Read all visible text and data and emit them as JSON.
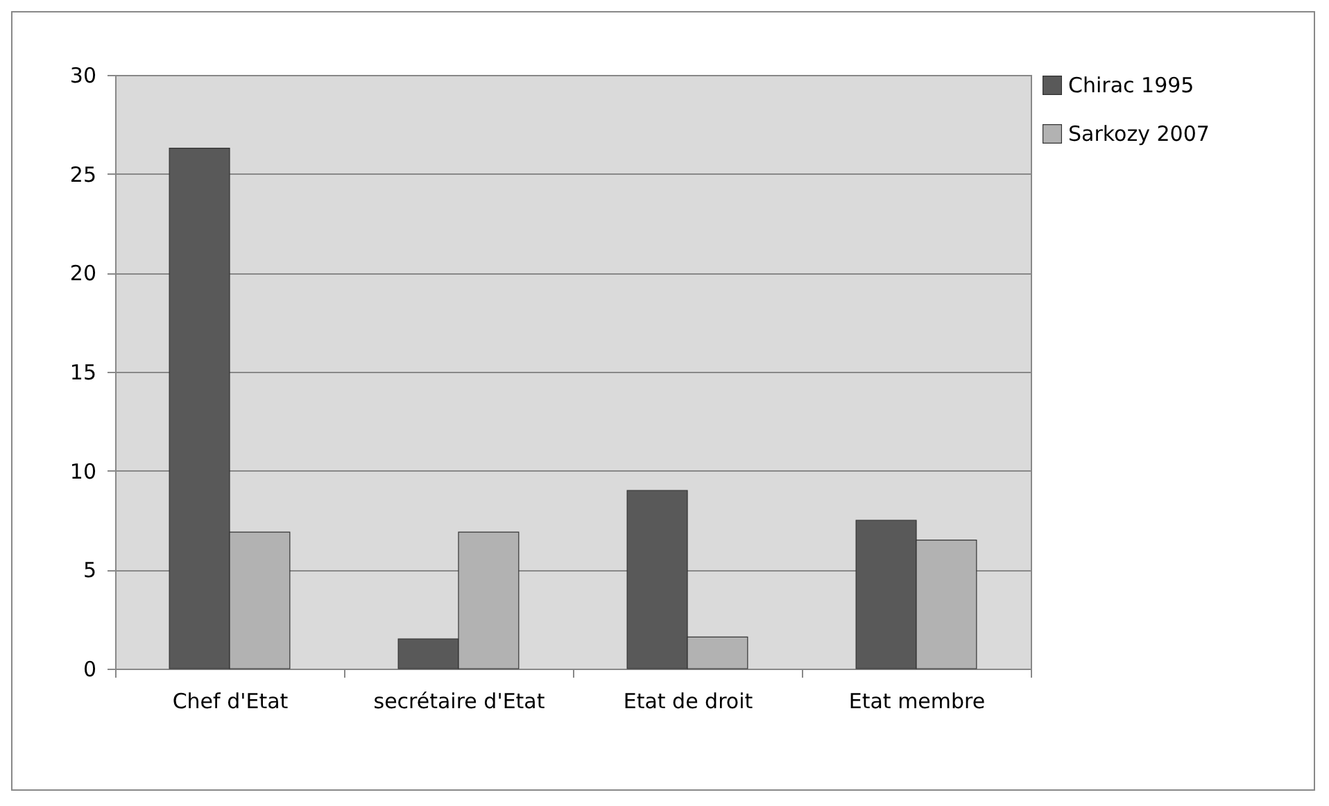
{
  "chart_data": {
    "type": "bar",
    "categories": [
      "Chef d'Etat",
      "secrétaire d'Etat",
      "Etat de droit",
      "Etat membre"
    ],
    "series": [
      {
        "name": "Chirac 1995",
        "color": "#595959",
        "values": [
          26.3,
          1.5,
          9.0,
          7.5
        ]
      },
      {
        "name": "Sarkozy 2007",
        "color": "#b2b2b2",
        "values": [
          6.9,
          6.9,
          1.6,
          6.5
        ]
      }
    ],
    "ylim": [
      0,
      30
    ],
    "yticks": [
      0,
      5,
      10,
      15,
      20,
      25,
      30
    ],
    "grid": "y",
    "legend": "right"
  }
}
